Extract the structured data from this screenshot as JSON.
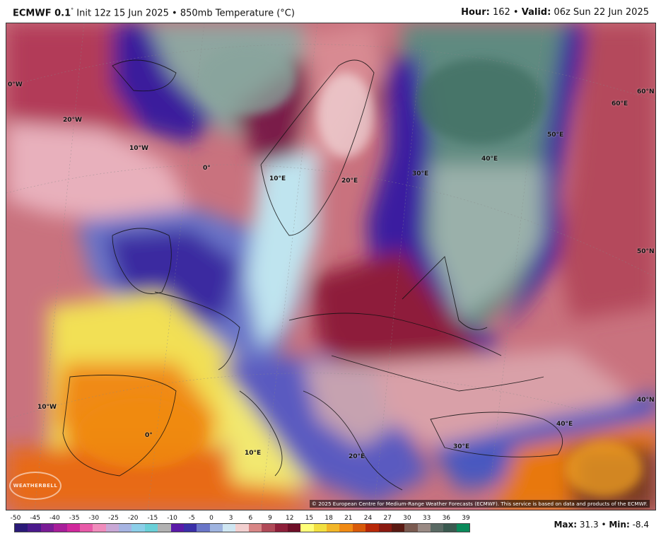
{
  "header": {
    "model": "ECMWF 0.1",
    "degree": "°",
    "init": "Init 12z 15 Jun 2025",
    "bullet": "•",
    "field": "850mb Temperature (°C)",
    "hour_label": "Hour:",
    "hour_value": "162",
    "valid_label": "Valid:",
    "valid_value": "06z Sun 22 Jun 2025"
  },
  "map": {
    "labels": {
      "lon_0w_edge": "0°W",
      "lon_20w": "20°W",
      "lon_10w_n": "10°W",
      "lon_0e_n": "0°",
      "lon_10e_n": "10°E",
      "lon_20e_n": "20°E",
      "lon_30e_n": "30°E",
      "lon_40e": "40°E",
      "lon_50e": "50°E",
      "lon_60e": "60°E",
      "lat_60n": "60°N",
      "lat_50n": "50°N",
      "lat_40n": "40°N",
      "lon_10w_s": "10°W",
      "lon_0_s": "0°",
      "lon_10e_s": "10°E",
      "lon_20e_s": "20°E",
      "lon_30e_s": "30°E",
      "lon_40e_s": "40°E"
    },
    "copyright": "© 2025 European Centre for Medium-Range Weather Forecasts (ECMWF). This service is based on data and products of the ECMWF.",
    "logo": "WEATHERBELL"
  },
  "legend": {
    "ticks": [
      "-50",
      "-45",
      "-40",
      "-35",
      "-30",
      "-25",
      "-20",
      "-15",
      "-10",
      "-5",
      "0",
      "3",
      "6",
      "9",
      "12",
      "15",
      "18",
      "21",
      "24",
      "27",
      "30",
      "33",
      "36",
      "39"
    ],
    "colors": [
      "#2a1a78",
      "#4b1a8c",
      "#7a1c96",
      "#a81e9a",
      "#d0289c",
      "#e85aa8",
      "#f08cbc",
      "#c9a8d6",
      "#a6b4e2",
      "#8ccfe9",
      "#6ad0d8",
      "#b2b2b2",
      "#5a1aa8",
      "#3a2fa8",
      "#6a76c8",
      "#9fb4e0",
      "#cfe6f2",
      "#f2cfcf",
      "#d88686",
      "#b04a58",
      "#8e1f3a",
      "#6e0f28",
      "#ffff78",
      "#f2e040",
      "#f2b628",
      "#f08a14",
      "#d85a0a",
      "#b82808",
      "#8a1a10",
      "#5a1a12",
      "#7a5a50",
      "#9a8a84",
      "#5a6a64",
      "#3a5a50",
      "#0a8a5a"
    ]
  },
  "stats": {
    "max_label": "Max:",
    "max_value": "31.3",
    "min_label": "Min:",
    "min_value": "-8.4",
    "bullet": "•"
  }
}
